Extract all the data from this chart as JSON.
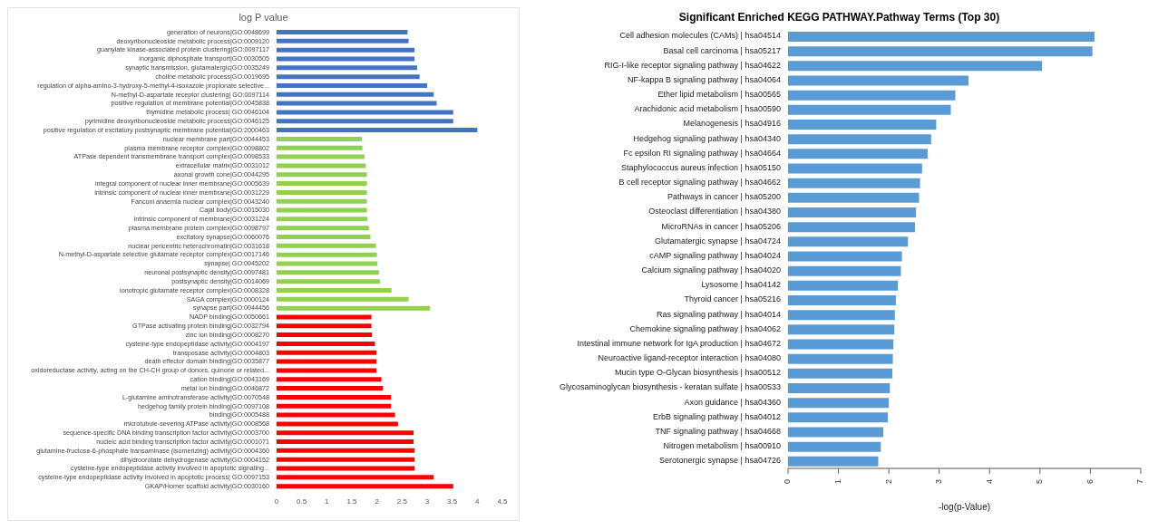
{
  "chart_data": [
    {
      "type": "bar",
      "orientation": "horizontal",
      "title": "log P value",
      "categories": [
        "generation of neurons|GO:0048699",
        "deoxyribonucleoside metabolic process|GO:0009120",
        "guanylate kinase-associated protein clustering|GO:0097117",
        "inorganic diphosphate transport|GO:0030505",
        "synaptic transmission, glutamatergic|GO:0035249",
        "choline metabolic process|GO:0019695",
        "regulation of alpha-amino-3-hydroxy-5-methyl-4-isoxazole propionate selective...",
        "N-methyl-D-aspartate receptor clustering| GO:0097114",
        "positive regulation of membrane potential|GO:0045838",
        "thymidine metabolic process| GO:0046104",
        "pyrimidine deoxyribonucleoside metabolic process|GO:0046125",
        "positive regulation of excitatory postsynaptic membrane potential|GO:2000463",
        "nuclear membrane part|GO:0044453",
        "plasma membrane receptor complex|GO:0098802",
        "ATPase dependent transmembrane transport complex|GO:0098533",
        "extracellular matrix|GO:0031012",
        "axonal growth cone|GO:0044295",
        "integral component of nuclear inner membrane|GO:0005639",
        "intrinsic component of nuclear inner membrane|GO:0031229",
        "Fanconi anaemia nuclear complex|GO:0043240",
        "Cajal body|GO:0015030",
        "intrinsic component of membrane|GO:0031224",
        "plasma membrane protein complex|GO:0098797",
        "excitatory synapse|GO:0060076",
        "nuclear pericentric heterochromatin|GO:0031618",
        "N-methyl-D-aspartate selective glutamate receptor complex|GO:0017146",
        "synapse| GO:0045202",
        "neuronal postsynaptic density|GO:0097481",
        "postsynaptic density|GO:0014069",
        "ionotropic glutamate receptor complex|GO:0008328",
        "SAGA complex|GO:0000124",
        "synapse part|GO:0044456",
        "NADP binding|GO:0050661",
        "GTPase activating protein binding|GO:0032794",
        "zinc ion binding|GO:0008270",
        "cysteine-type endopeptidase activity|GO:0004197",
        "transposase activity|GO:0004803",
        "death effector domain binding|GO:0035877",
        "oxidoreductase activity, acting on the CH-CH group of donors, quinone or related...",
        "cation binding|GO:0043169",
        "metal ion binding|GO:0046872",
        "L-glutamine aminotransferase activity|GO:0070548",
        "hedgehog family protein binding|GO:0097108",
        "binding|GO:0005488",
        "microtubule-severing ATPase activity|GO:0008568",
        "sequence-specific DNA binding transcription factor activity|GO:0003700",
        "nucleic acid binding transcription factor activity|GO:0001071",
        "glutamine-fructose-6-phosphate transaminase (isomerizing) activity|GO:0004360",
        "dihydroorotate dehydrogenase activity|GO:0004152",
        "cysteine-type endopeptidase activity involved in apoptotic signaling...",
        "cysteine-type endopeptidase activity involved in apoptotic process| GO:0097153",
        "GKAP/Homer scaffold activity|GO:0030160"
      ],
      "values": [
        2.61,
        2.63,
        2.75,
        2.75,
        2.8,
        2.85,
        3.0,
        3.13,
        3.19,
        3.52,
        3.52,
        4.0,
        1.7,
        1.71,
        1.75,
        1.78,
        1.8,
        1.8,
        1.8,
        1.8,
        1.8,
        1.81,
        1.84,
        1.87,
        1.98,
        2.0,
        2.01,
        2.04,
        2.06,
        2.29,
        2.63,
        3.06,
        1.89,
        1.89,
        1.9,
        1.96,
        1.99,
        1.99,
        1.99,
        2.09,
        2.12,
        2.28,
        2.28,
        2.36,
        2.42,
        2.73,
        2.73,
        2.75,
        2.75,
        2.75,
        3.13,
        3.52
      ],
      "colors": [
        "#4472c4",
        "#4472c4",
        "#4472c4",
        "#4472c4",
        "#4472c4",
        "#4472c4",
        "#4472c4",
        "#4472c4",
        "#4472c4",
        "#4472c4",
        "#4472c4",
        "#4472c4",
        "#92d050",
        "#92d050",
        "#92d050",
        "#92d050",
        "#92d050",
        "#92d050",
        "#92d050",
        "#92d050",
        "#92d050",
        "#92d050",
        "#92d050",
        "#92d050",
        "#92d050",
        "#92d050",
        "#92d050",
        "#92d050",
        "#92d050",
        "#92d050",
        "#92d050",
        "#92d050",
        "#ff0000",
        "#ff0000",
        "#ff0000",
        "#ff0000",
        "#ff0000",
        "#ff0000",
        "#ff0000",
        "#ff0000",
        "#ff0000",
        "#ff0000",
        "#ff0000",
        "#ff0000",
        "#ff0000",
        "#ff0000",
        "#ff0000",
        "#ff0000",
        "#ff0000",
        "#ff0000",
        "#ff0000",
        "#ff0000"
      ],
      "xlim": [
        0,
        4.5
      ],
      "xticks": [
        0,
        0.5,
        1,
        1.5,
        2,
        2.5,
        3,
        3.5,
        4,
        4.5
      ]
    },
    {
      "type": "bar",
      "orientation": "horizontal",
      "title": "Significant Enriched KEGG PATHWAY.Pathway Terms (Top 30)",
      "xlabel": "-log(p-Value)",
      "categories": [
        "Cell adhesion molecules (CAMs) | hsa04514",
        "Basal cell carcinoma | hsa05217",
        "RIG-I-like receptor signaling pathway | hsa04622",
        "NF-kappa B signaling pathway | hsa04064",
        "Ether lipid metabolism | hsa00565",
        "Arachidonic acid metabolism | hsa00590",
        "Melanogenesis | hsa04916",
        "Hedgehog signaling pathway | hsa04340",
        "Fc epsilon RI signaling pathway | hsa04664",
        "Staphylococcus aureus infection | hsa05150",
        "B cell receptor signaling pathway | hsa04662",
        "Pathways in cancer | hsa05200",
        "Osteoclast differentiation | hsa04380",
        "MicroRNAs in cancer | hsa05206",
        "Glutamatergic synapse | hsa04724",
        "cAMP signaling pathway | hsa04024",
        "Calcium signaling pathway | hsa04020",
        "Lysosome | hsa04142",
        "Thyroid cancer | hsa05216",
        "Ras signaling pathway | hsa04014",
        "Chemokine signaling pathway | hsa04062",
        "Intestinal immune network for IgA production | hsa04672",
        "Neuroactive ligand-receptor interaction | hsa04080",
        "Mucin type O-Glycan biosynthesis | hsa00512",
        "Glycosaminoglycan biosynthesis - keratan sulfate | hsa00533",
        "Axon guidance | hsa04360",
        "ErbB signaling pathway | hsa04012",
        "TNF signaling pathway | hsa04668",
        "Nitrogen metabolism | hsa00910",
        "Serotonergic synapse | hsa04726"
      ],
      "values": [
        6.08,
        6.04,
        5.04,
        3.58,
        3.32,
        3.23,
        2.94,
        2.84,
        2.77,
        2.66,
        2.62,
        2.6,
        2.54,
        2.52,
        2.38,
        2.26,
        2.24,
        2.18,
        2.14,
        2.12,
        2.11,
        2.09,
        2.08,
        2.07,
        2.02,
        2.0,
        1.98,
        1.89,
        1.84,
        1.79
      ],
      "color": "#5b9bd5",
      "xlim": [
        0,
        7
      ],
      "xticks": [
        0,
        1,
        2,
        3,
        4,
        5,
        6,
        7
      ]
    }
  ]
}
